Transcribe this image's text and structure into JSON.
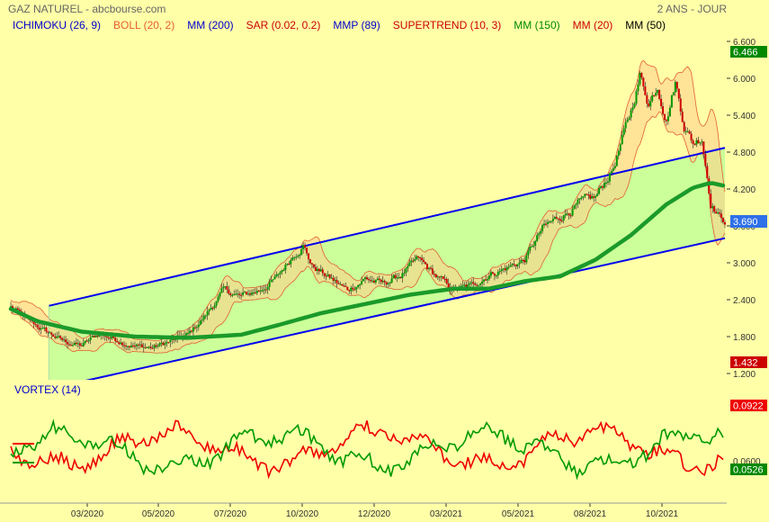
{
  "header": {
    "title": "GAZ NATUREL - abcbourse.com",
    "period": "2 ANS - JOUR"
  },
  "legend": [
    {
      "label": "ICHIMOKU (26, 9)",
      "color": "#0000cc"
    },
    {
      "label": "BOLL (20, 2)",
      "color": "#e8602c"
    },
    {
      "label": "MM (200)",
      "color": "#0000cc"
    },
    {
      "label": "SAR (0.02, 0.2)",
      "color": "#cc0000"
    },
    {
      "label": "MMP (89)",
      "color": "#0000cc"
    },
    {
      "label": "SUPERTREND (10, 3)",
      "color": "#cc0000"
    },
    {
      "label": "MM (150)",
      "color": "#008800"
    },
    {
      "label": "MM (20)",
      "color": "#cc0000"
    },
    {
      "label": "MM (50)",
      "color": "#000000"
    }
  ],
  "colors": {
    "background": "#ffffa8",
    "channel_fill": "#ccff99",
    "channel_line": "#0000ee",
    "bollinger_fill": "#ffcc88",
    "bollinger_line": "#e06030",
    "ma_line": "#1a9a2a",
    "candle_up": "#009900",
    "candle_down": "#cc0000",
    "vortex_plus": "#009900",
    "vortex_minus": "#ee0000"
  },
  "chart_data": [
    {
      "type": "line",
      "name": "price",
      "title": "GAZ NATUREL",
      "x": [
        "03/2020",
        "05/2020",
        "07/2020",
        "10/2020",
        "12/2020",
        "03/2021",
        "05/2021",
        "08/2021",
        "10/2021"
      ],
      "price_ticks": [
        "6.600",
        "6.000",
        "5.400",
        "4.800",
        "4.200",
        "3.600",
        "3.000",
        "2.400",
        "1.800",
        "1.200"
      ],
      "ylim": [
        1.2,
        6.6
      ],
      "last_price": "3.690",
      "max_label": "6.466",
      "min_label": "1.432",
      "price_keypoints": [
        [
          0,
          2.28
        ],
        [
          20,
          2.05
        ],
        [
          40,
          1.88
        ],
        [
          60,
          1.72
        ],
        [
          80,
          1.65
        ],
        [
          100,
          1.85
        ],
        [
          120,
          1.75
        ],
        [
          140,
          1.65
        ],
        [
          160,
          1.62
        ],
        [
          180,
          1.72
        ],
        [
          200,
          1.82
        ],
        [
          220,
          2.15
        ],
        [
          240,
          2.55
        ],
        [
          260,
          2.45
        ],
        [
          280,
          2.55
        ],
        [
          300,
          2.75
        ],
        [
          320,
          3.15
        ],
        [
          330,
          3.3
        ],
        [
          340,
          2.95
        ],
        [
          360,
          2.75
        ],
        [
          380,
          2.55
        ],
        [
          400,
          2.75
        ],
        [
          420,
          2.65
        ],
        [
          440,
          2.8
        ],
        [
          460,
          3.05
        ],
        [
          480,
          2.78
        ],
        [
          500,
          2.55
        ],
        [
          520,
          2.62
        ],
        [
          540,
          2.82
        ],
        [
          560,
          2.92
        ],
        [
          580,
          3.05
        ],
        [
          600,
          3.55
        ],
        [
          620,
          3.75
        ],
        [
          640,
          3.95
        ],
        [
          660,
          4.05
        ],
        [
          680,
          4.55
        ],
        [
          700,
          5.45
        ],
        [
          710,
          6.05
        ],
        [
          720,
          5.6
        ],
        [
          730,
          5.9
        ],
        [
          740,
          5.35
        ],
        [
          750,
          5.95
        ],
        [
          760,
          5.25
        ],
        [
          770,
          4.95
        ],
        [
          780,
          5.05
        ],
        [
          790,
          4.0
        ],
        [
          800,
          3.75
        ],
        [
          806,
          3.69
        ]
      ],
      "ma150_keypoints": [
        [
          0,
          2.25
        ],
        [
          30,
          2.05
        ],
        [
          80,
          1.88
        ],
        [
          140,
          1.8
        ],
        [
          200,
          1.78
        ],
        [
          260,
          1.83
        ],
        [
          300,
          1.98
        ],
        [
          350,
          2.18
        ],
        [
          400,
          2.33
        ],
        [
          450,
          2.48
        ],
        [
          500,
          2.58
        ],
        [
          540,
          2.58
        ],
        [
          580,
          2.7
        ],
        [
          620,
          2.78
        ],
        [
          660,
          3.05
        ],
        [
          700,
          3.45
        ],
        [
          740,
          3.95
        ],
        [
          770,
          4.22
        ],
        [
          790,
          4.3
        ],
        [
          806,
          4.25
        ]
      ],
      "channel": {
        "upper": [
          [
            43,
            2.3
          ],
          [
            806,
            4.87
          ]
        ],
        "lower": [
          [
            43,
            0.95
          ],
          [
            806,
            3.4
          ]
        ]
      }
    },
    {
      "type": "line",
      "title": "VORTEX (14)",
      "series": [
        {
          "name": "VI+",
          "last": "0.0526"
        },
        {
          "name": "VI-",
          "last": "0.0922"
        }
      ],
      "tick_labels": [
        "0.0600"
      ]
    }
  ]
}
